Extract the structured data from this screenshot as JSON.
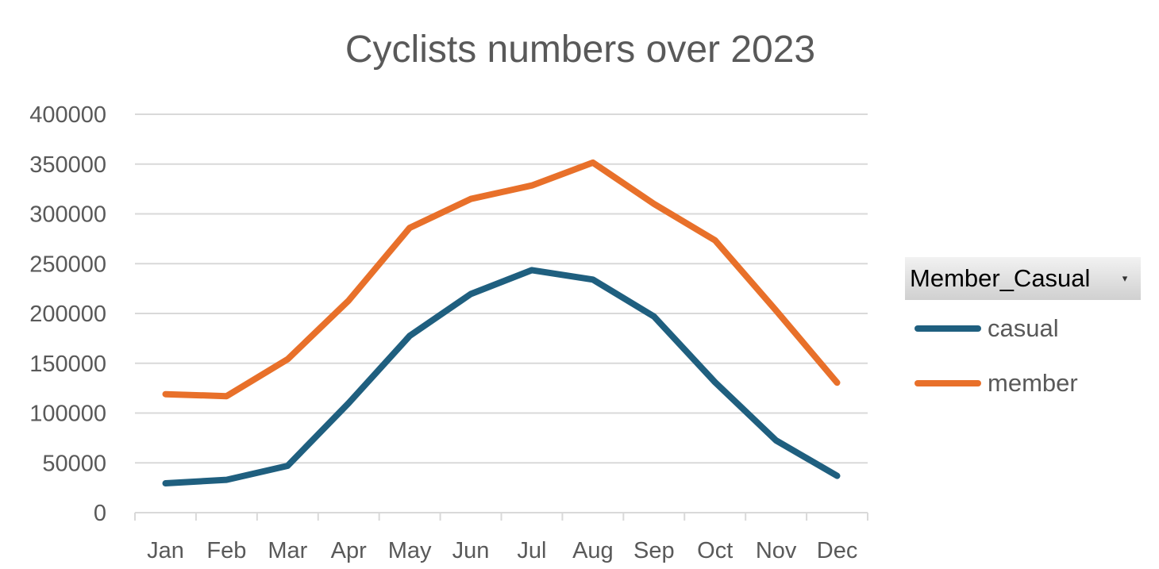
{
  "chart_data": {
    "type": "line",
    "title": "Cyclists numbers over 2023",
    "categories": [
      "Jan",
      "Feb",
      "Mar",
      "Apr",
      "May",
      "Jun",
      "Jul",
      "Aug",
      "Sep",
      "Oct",
      "Nov",
      "Dec"
    ],
    "yticks": [
      "0",
      "50000",
      "100000",
      "150000",
      "200000",
      "250000",
      "300000",
      "350000",
      "400000"
    ],
    "ylim": [
      0,
      400000
    ],
    "grid": true,
    "legend_placement": "right",
    "legend_title": "Member_Casual",
    "series": [
      {
        "name": "casual",
        "color": "#1f5f7f",
        "values": [
          29500,
          33000,
          47000,
          110000,
          177500,
          219500,
          243500,
          234000,
          197000,
          131000,
          72500,
          37000
        ]
      },
      {
        "name": "member",
        "color": "#e8702a",
        "values": [
          119000,
          117000,
          154000,
          213000,
          286000,
          315000,
          328500,
          351500,
          310000,
          273500,
          203000,
          130500
        ]
      }
    ]
  },
  "legend": {
    "dropdown_icon": "dropdown-arrow-icon",
    "dropdown_glyph": "▾"
  }
}
